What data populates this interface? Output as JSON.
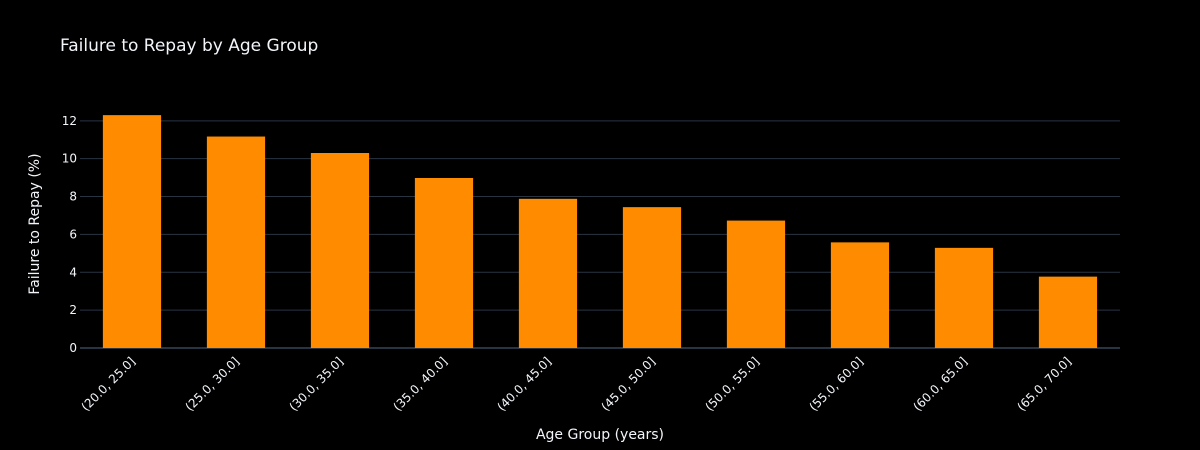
{
  "chart_data": {
    "type": "bar",
    "title": "Failure to Repay by Age Group",
    "xlabel": "Age Group (years)",
    "ylabel": "Failure to Repay (%)",
    "categories": [
      "(20.0, 25.0]",
      "(25.0, 30.0]",
      "(30.0, 35.0]",
      "(35.0, 40.0]",
      "(40.0, 45.0]",
      "(45.0, 50.0]",
      "(50.0, 55.0]",
      "(55.0, 60.0]",
      "(60.0, 65.0]",
      "(65.0, 70.0]"
    ],
    "values": [
      12.3,
      11.17,
      10.3,
      8.98,
      7.88,
      7.44,
      6.73,
      5.58,
      5.29,
      3.77
    ],
    "ylim": [
      0,
      13.1
    ],
    "yticks": [
      0,
      2,
      4,
      6,
      8,
      10,
      12
    ],
    "grid": true,
    "colors": {
      "bar": "#ff8c00",
      "background": "#000000",
      "grid": "#283442",
      "text": "#f2f5fa"
    }
  }
}
